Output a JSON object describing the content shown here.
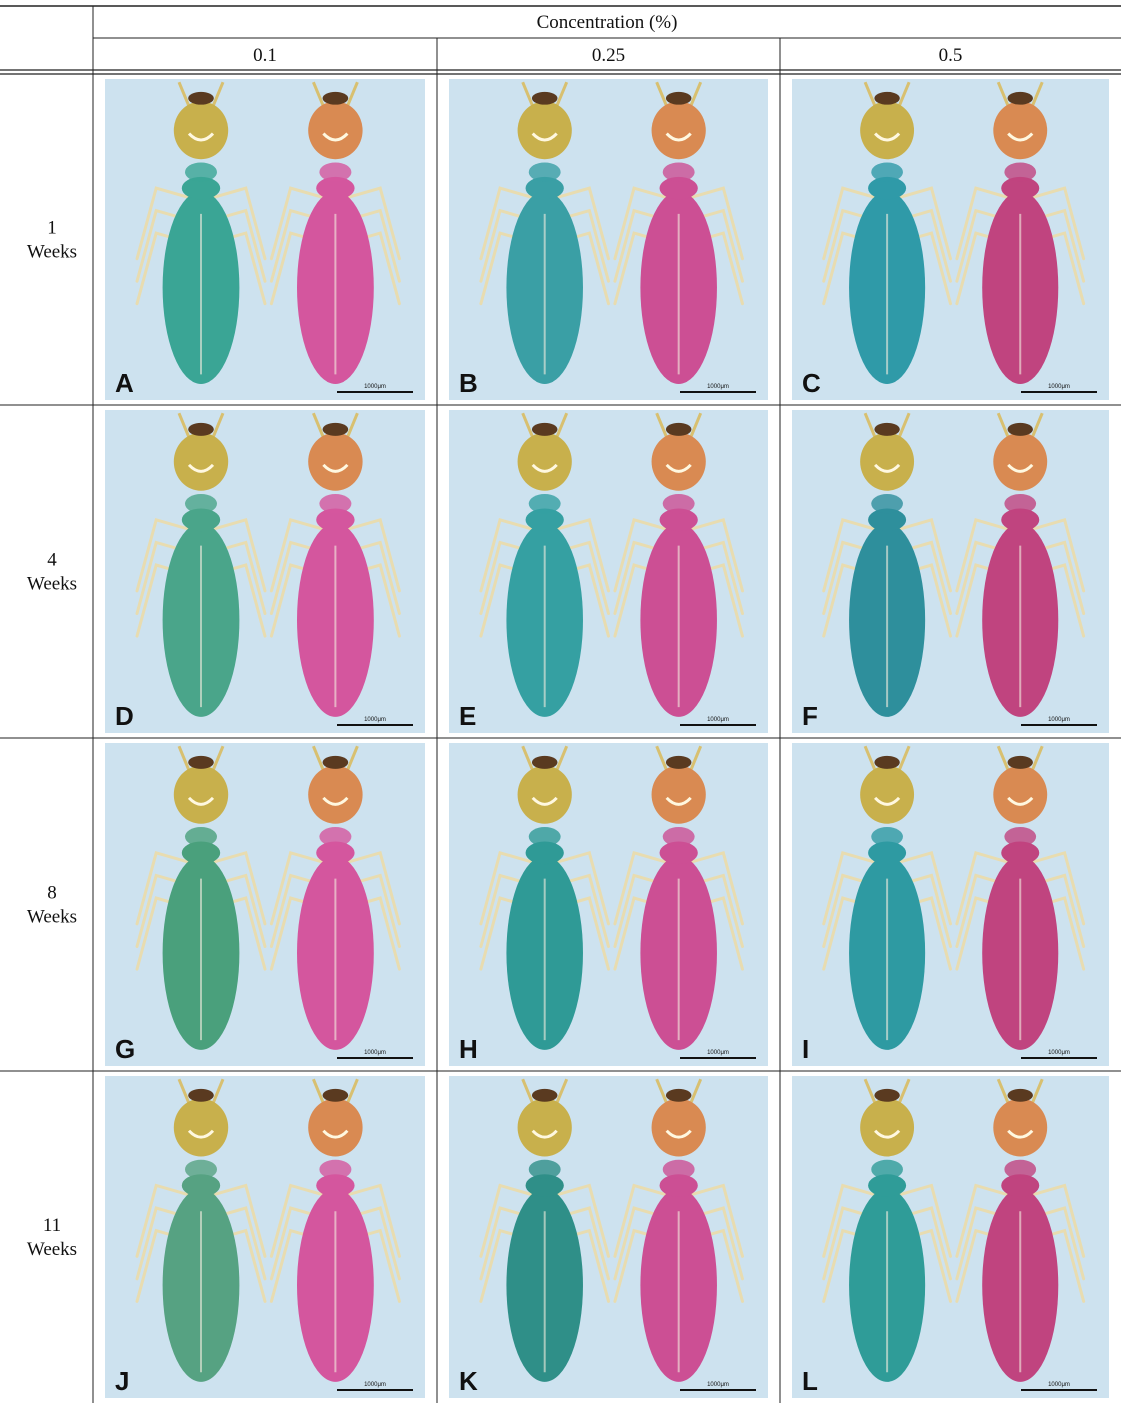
{
  "table": {
    "header": "Concentration (%)",
    "columns": [
      "0.1",
      "0.25",
      "0.5"
    ],
    "rows": [
      {
        "number": "1",
        "unit": "Weeks",
        "panels": [
          {
            "letter": "A",
            "scale": "1000μm"
          },
          {
            "letter": "B",
            "scale": "1000μm"
          },
          {
            "letter": "C",
            "scale": "1000μm"
          }
        ]
      },
      {
        "number": "4",
        "unit": "Weeks",
        "panels": [
          {
            "letter": "D",
            "scale": "1000μm"
          },
          {
            "letter": "E",
            "scale": "1000μm"
          },
          {
            "letter": "F",
            "scale": "1000μm"
          }
        ]
      },
      {
        "number": "8",
        "unit": "Weeks",
        "panels": [
          {
            "letter": "G",
            "scale": "1000μm"
          },
          {
            "letter": "H",
            "scale": "1000μm"
          },
          {
            "letter": "I",
            "scale": "1000μm"
          }
        ]
      },
      {
        "number": "11",
        "unit": "Weeks",
        "panels": [
          {
            "letter": "J",
            "scale": "1000μm"
          },
          {
            "letter": "K",
            "scale": "1000μm"
          },
          {
            "letter": "L",
            "scale": "1000μm"
          }
        ]
      }
    ]
  }
}
